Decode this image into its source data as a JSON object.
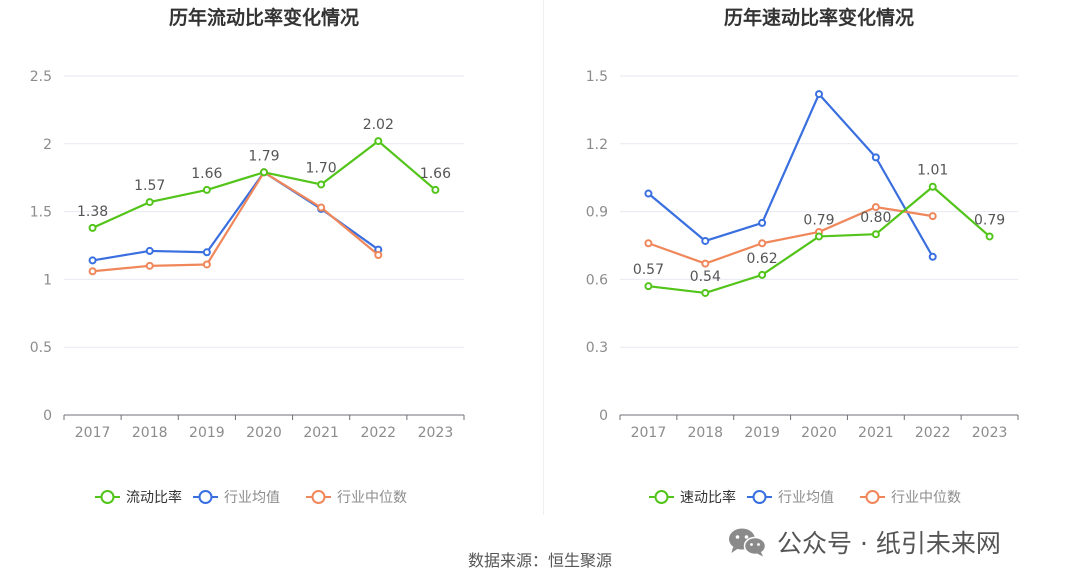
{
  "chart_data": [
    {
      "type": "line",
      "title": "历年流动比率变化情况",
      "categories": [
        "2017",
        "2018",
        "2019",
        "2020",
        "2021",
        "2022",
        "2023"
      ],
      "ylim": [
        0,
        2.5
      ],
      "yticks": [
        "0",
        "0.5",
        "1",
        "1.5",
        "2",
        "2.5"
      ],
      "ytick_values": [
        0,
        0.5,
        1,
        1.5,
        2,
        2.5
      ],
      "grid": true,
      "legend_position": "bottom",
      "series": [
        {
          "name": "流动比率",
          "color": "#52c41a",
          "values": [
            1.38,
            1.57,
            1.66,
            1.79,
            1.7,
            2.02,
            1.66
          ],
          "labels": [
            "1.38",
            "1.57",
            "1.66",
            "1.79",
            "1.70",
            "2.02",
            "1.66"
          ]
        },
        {
          "name": "行业均值",
          "color": "#3a6fe0",
          "values": [
            1.14,
            1.21,
            1.2,
            1.79,
            1.52,
            1.22,
            null
          ]
        },
        {
          "name": "行业中位数",
          "color": "#f0875a",
          "values": [
            1.06,
            1.1,
            1.11,
            1.79,
            1.53,
            1.18,
            null
          ]
        }
      ]
    },
    {
      "type": "line",
      "title": "历年速动比率变化情况",
      "categories": [
        "2017",
        "2018",
        "2019",
        "2020",
        "2021",
        "2022",
        "2023"
      ],
      "ylim": [
        0,
        1.5
      ],
      "yticks": [
        "0",
        "0.3",
        "0.6",
        "0.9",
        "1.2",
        "1.5"
      ],
      "ytick_values": [
        0,
        0.3,
        0.6,
        0.9,
        1.2,
        1.5
      ],
      "grid": true,
      "legend_position": "bottom",
      "series": [
        {
          "name": "速动比率",
          "color": "#52c41a",
          "values": [
            0.57,
            0.54,
            0.62,
            0.79,
            0.8,
            1.01,
            0.79
          ],
          "labels": [
            "0.57",
            "0.54",
            "0.62",
            "0.79",
            "0.80",
            "1.01",
            "0.79"
          ]
        },
        {
          "name": "行业均值",
          "color": "#3a6fe0",
          "values": [
            0.98,
            0.77,
            0.85,
            1.42,
            1.14,
            0.7,
            null
          ]
        },
        {
          "name": "行业中位数",
          "color": "#f0875a",
          "values": [
            0.76,
            0.67,
            0.76,
            0.81,
            0.92,
            0.88,
            null
          ]
        }
      ]
    }
  ],
  "footer": {
    "source": "数据来源：恒生聚源"
  },
  "watermark": {
    "text": "公众号 · 纸引未来网",
    "icon": "wechat-icon"
  }
}
